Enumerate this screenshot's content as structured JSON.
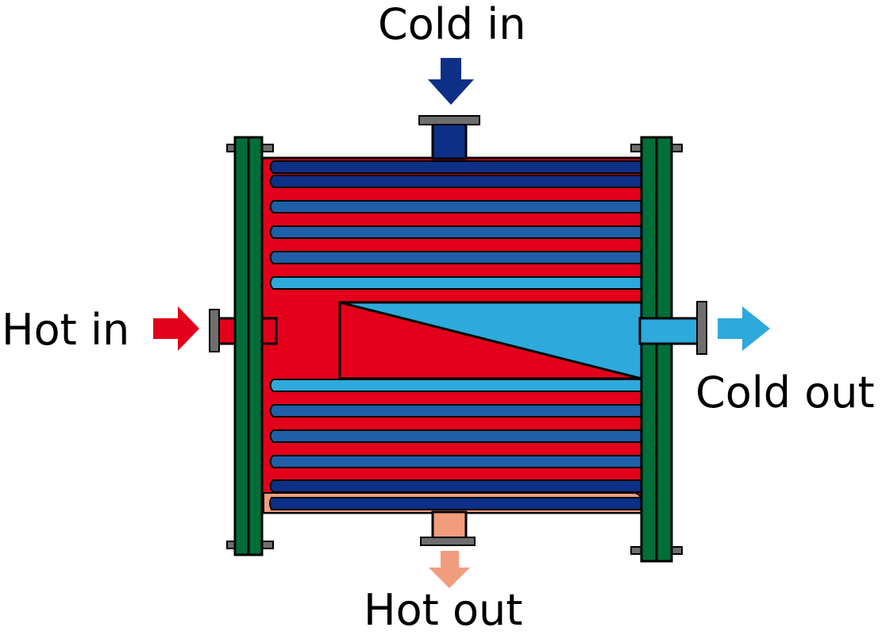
{
  "labels": {
    "cold_in": "Cold in",
    "hot_in": "Hot in",
    "cold_out": "Cold out",
    "hot_out": "Hot out"
  },
  "colors": {
    "hot": "#e2001a",
    "hot_outlet": "#f29c7e",
    "cold_dark": "#0d2f86",
    "cold_mid": "#1e5fa8",
    "cold_light": "#2ea9dc",
    "tube_sheet": "#006e39",
    "flange": "#6e6e6e",
    "outline": "#000000"
  }
}
